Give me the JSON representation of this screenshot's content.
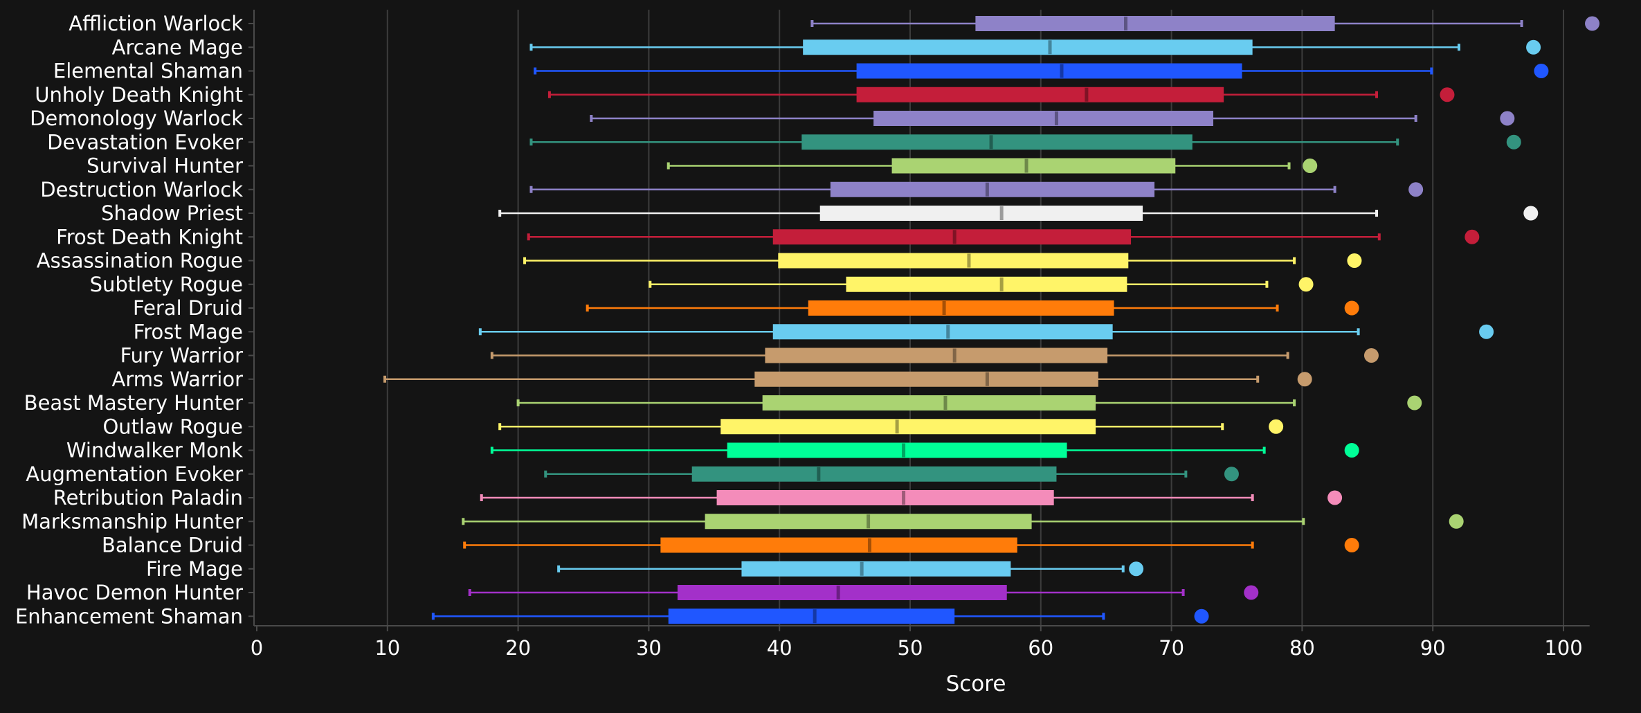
{
  "chart_data": {
    "type": "box",
    "orientation": "horizontal",
    "xlabel": "Score",
    "ylabel": "",
    "xlim": [
      0,
      102
    ],
    "xticks": [
      0,
      10,
      20,
      30,
      40,
      50,
      60,
      70,
      80,
      90,
      100
    ],
    "xtick_labels": [
      "0",
      "10",
      "20",
      "30",
      "40",
      "50",
      "60",
      "70",
      "80",
      "90",
      "100"
    ],
    "grid": "vertical",
    "outlier_style": "dot",
    "categories": [
      {
        "name": "Affliction Warlock",
        "color": "#8e82c8",
        "min": 42.5,
        "q1": 55.0,
        "median": 66.5,
        "q3": 82.5,
        "max": 96.8,
        "outlier": 102.2
      },
      {
        "name": "Arcane Mage",
        "color": "#69ccf0",
        "min": 21.0,
        "q1": 41.8,
        "median": 60.7,
        "q3": 76.2,
        "max": 92.0,
        "outlier": 97.7
      },
      {
        "name": "Elemental Shaman",
        "color": "#2057ff",
        "min": 21.3,
        "q1": 45.9,
        "median": 61.6,
        "q3": 75.4,
        "max": 89.9,
        "outlier": 98.3
      },
      {
        "name": "Unholy Death Knight",
        "color": "#c41e3a",
        "min": 22.4,
        "q1": 45.9,
        "median": 63.5,
        "q3": 74.0,
        "max": 85.7,
        "outlier": 91.1
      },
      {
        "name": "Demonology Warlock",
        "color": "#8e82c8",
        "min": 25.6,
        "q1": 47.2,
        "median": 61.2,
        "q3": 73.2,
        "max": 88.7,
        "outlier": 95.7
      },
      {
        "name": "Devastation Evoker",
        "color": "#33937f",
        "min": 21.0,
        "q1": 41.7,
        "median": 56.2,
        "q3": 71.6,
        "max": 87.3,
        "outlier": 96.2
      },
      {
        "name": "Survival Hunter",
        "color": "#aad372",
        "min": 31.5,
        "q1": 48.6,
        "median": 58.9,
        "q3": 70.3,
        "max": 79.0,
        "outlier": 80.6
      },
      {
        "name": "Destruction Warlock",
        "color": "#8e82c8",
        "min": 21.0,
        "q1": 43.9,
        "median": 55.9,
        "q3": 68.7,
        "max": 82.5,
        "outlier": 88.7
      },
      {
        "name": "Shadow Priest",
        "color": "#f0f0f0",
        "min": 18.6,
        "q1": 43.1,
        "median": 57.0,
        "q3": 67.8,
        "max": 85.7,
        "outlier": 97.5
      },
      {
        "name": "Frost Death Knight",
        "color": "#c41e3a",
        "min": 20.8,
        "q1": 39.5,
        "median": 53.4,
        "q3": 66.9,
        "max": 85.9,
        "outlier": 93.0
      },
      {
        "name": "Assassination Rogue",
        "color": "#fff468",
        "min": 20.5,
        "q1": 39.9,
        "median": 54.5,
        "q3": 66.7,
        "max": 79.4,
        "outlier": 84.0
      },
      {
        "name": "Subtlety Rogue",
        "color": "#fff468",
        "min": 30.1,
        "q1": 45.1,
        "median": 57.0,
        "q3": 66.6,
        "max": 77.3,
        "outlier": 80.3
      },
      {
        "name": "Feral Druid",
        "color": "#ff7c0a",
        "min": 25.3,
        "q1": 42.2,
        "median": 52.6,
        "q3": 65.6,
        "max": 78.1,
        "outlier": 83.8
      },
      {
        "name": "Frost Mage",
        "color": "#69ccf0",
        "min": 17.1,
        "q1": 39.5,
        "median": 52.9,
        "q3": 65.5,
        "max": 84.3,
        "outlier": 94.1
      },
      {
        "name": "Fury Warrior",
        "color": "#c69b6d",
        "min": 18.0,
        "q1": 38.9,
        "median": 53.4,
        "q3": 65.1,
        "max": 78.9,
        "outlier": 85.3
      },
      {
        "name": "Arms Warrior",
        "color": "#c69b6d",
        "min": 9.8,
        "q1": 38.1,
        "median": 55.9,
        "q3": 64.4,
        "max": 76.6,
        "outlier": 80.2
      },
      {
        "name": "Beast Mastery Hunter",
        "color": "#aad372",
        "min": 20.0,
        "q1": 38.7,
        "median": 52.7,
        "q3": 64.2,
        "max": 79.4,
        "outlier": 88.6
      },
      {
        "name": "Outlaw Rogue",
        "color": "#fff468",
        "min": 18.6,
        "q1": 35.5,
        "median": 49.0,
        "q3": 64.2,
        "max": 73.9,
        "outlier": 78.0
      },
      {
        "name": "Windwalker Monk",
        "color": "#00ff98",
        "min": 18.0,
        "q1": 36.0,
        "median": 49.5,
        "q3": 62.0,
        "max": 77.1,
        "outlier": 83.8
      },
      {
        "name": "Augmentation Evoker",
        "color": "#33937f",
        "min": 22.1,
        "q1": 33.3,
        "median": 43.0,
        "q3": 61.2,
        "max": 71.1,
        "outlier": 74.6
      },
      {
        "name": "Retribution Paladin",
        "color": "#f48cba",
        "min": 17.2,
        "q1": 35.2,
        "median": 49.5,
        "q3": 61.0,
        "max": 76.2,
        "outlier": 82.5
      },
      {
        "name": "Marksmanship Hunter",
        "color": "#aad372",
        "min": 15.8,
        "q1": 34.3,
        "median": 46.8,
        "q3": 59.3,
        "max": 80.1,
        "outlier": 91.8
      },
      {
        "name": "Balance Druid",
        "color": "#ff7c0a",
        "min": 15.9,
        "q1": 30.9,
        "median": 46.9,
        "q3": 58.2,
        "max": 76.2,
        "outlier": 83.8
      },
      {
        "name": "Fire Mage",
        "color": "#69ccf0",
        "min": 23.1,
        "q1": 37.1,
        "median": 46.3,
        "q3": 57.7,
        "max": 66.3,
        "outlier": 67.3
      },
      {
        "name": "Havoc Demon Hunter",
        "color": "#a330c9",
        "min": 16.3,
        "q1": 32.2,
        "median": 44.5,
        "q3": 57.4,
        "max": 70.9,
        "outlier": 76.1
      },
      {
        "name": "Enhancement Shaman",
        "color": "#2057ff",
        "min": 13.5,
        "q1": 31.5,
        "median": 42.7,
        "q3": 53.4,
        "max": 64.8,
        "outlier": 72.3
      }
    ]
  },
  "colors": {
    "background": "#141414",
    "grid": "#3c3c3c",
    "axis": "#4a4a4a",
    "text": "#ffffff"
  }
}
